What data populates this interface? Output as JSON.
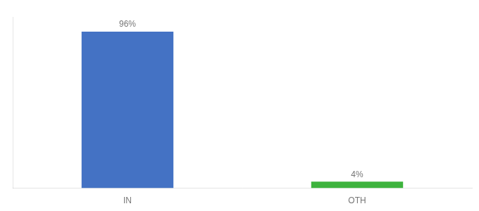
{
  "chart_data": {
    "type": "bar",
    "categories": [
      "IN",
      "OTH"
    ],
    "values": [
      96,
      4
    ],
    "value_labels": [
      "96%",
      "4%"
    ],
    "data_labels": true,
    "colors": [
      "#4472c4",
      "#3db33d"
    ],
    "ylim": [
      0,
      105
    ],
    "grid": false,
    "tick_labels": "x"
  }
}
